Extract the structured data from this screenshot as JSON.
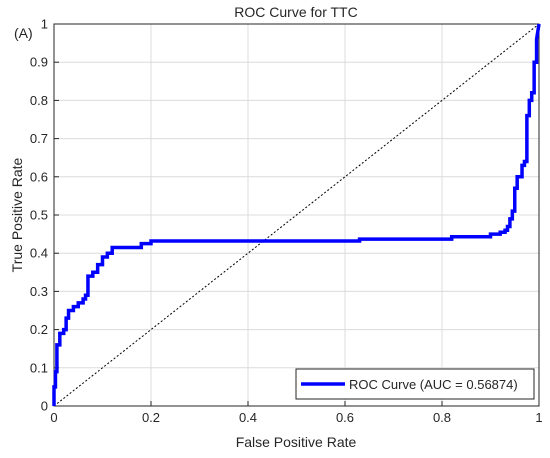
{
  "panel_label": "(A)",
  "chart_data": {
    "type": "line",
    "title": "ROC Curve for TTC",
    "xlabel": "False Positive Rate",
    "ylabel": "True Positive Rate",
    "xlim": [
      0,
      1
    ],
    "ylim": [
      0,
      1
    ],
    "xticks": [
      0,
      0.2,
      0.4,
      0.6,
      0.8,
      1
    ],
    "xtick_labels": [
      "0",
      "0.2",
      "0.4",
      "0.6",
      "0.8",
      "1"
    ],
    "yticks": [
      0,
      0.1,
      0.2,
      0.3,
      0.4,
      0.5,
      0.6,
      0.7,
      0.8,
      0.9,
      1
    ],
    "ytick_labels": [
      "0",
      "0.1",
      "0.2",
      "0.3",
      "0.4",
      "0.5",
      "0.6",
      "0.7",
      "0.8",
      "0.9",
      "1"
    ],
    "grid": true,
    "legend_position": "bottom-right",
    "line_color": "#0000ff",
    "diagonal_color": "#000000",
    "series": [
      {
        "name": "ROC Curve (AUC = 0.56874)",
        "x": [
          0,
          0,
          0.003,
          0.003,
          0.006,
          0.006,
          0.012,
          0.012,
          0.02,
          0.02,
          0.025,
          0.025,
          0.03,
          0.03,
          0.04,
          0.04,
          0.05,
          0.05,
          0.06,
          0.06,
          0.065,
          0.065,
          0.07,
          0.07,
          0.08,
          0.08,
          0.09,
          0.09,
          0.1,
          0.1,
          0.11,
          0.11,
          0.12,
          0.12,
          0.18,
          0.18,
          0.2,
          0.2,
          0.4,
          0.63,
          0.63,
          0.82,
          0.82,
          0.9,
          0.9,
          0.92,
          0.92,
          0.93,
          0.93,
          0.935,
          0.935,
          0.94,
          0.94,
          0.945,
          0.945,
          0.95,
          0.95,
          0.955,
          0.955,
          0.965,
          0.965,
          0.97,
          0.97,
          0.975,
          0.975,
          0.98,
          0.98,
          0.985,
          0.985,
          0.99,
          0.99,
          0.995,
          0.995,
          1
        ],
        "y": [
          0,
          0.05,
          0.05,
          0.09,
          0.09,
          0.16,
          0.16,
          0.19,
          0.19,
          0.2,
          0.2,
          0.23,
          0.23,
          0.25,
          0.25,
          0.26,
          0.26,
          0.27,
          0.27,
          0.28,
          0.28,
          0.29,
          0.29,
          0.34,
          0.34,
          0.35,
          0.35,
          0.37,
          0.37,
          0.39,
          0.39,
          0.4,
          0.4,
          0.415,
          0.415,
          0.425,
          0.425,
          0.432,
          0.432,
          0.432,
          0.437,
          0.437,
          0.443,
          0.443,
          0.45,
          0.45,
          0.455,
          0.455,
          0.46,
          0.46,
          0.47,
          0.47,
          0.49,
          0.49,
          0.51,
          0.51,
          0.57,
          0.57,
          0.6,
          0.6,
          0.63,
          0.63,
          0.64,
          0.64,
          0.76,
          0.76,
          0.8,
          0.8,
          0.82,
          0.82,
          0.9,
          0.9,
          0.96,
          1
        ]
      }
    ],
    "reference_line": {
      "x": [
        0,
        1
      ],
      "y": [
        0,
        1
      ]
    }
  }
}
